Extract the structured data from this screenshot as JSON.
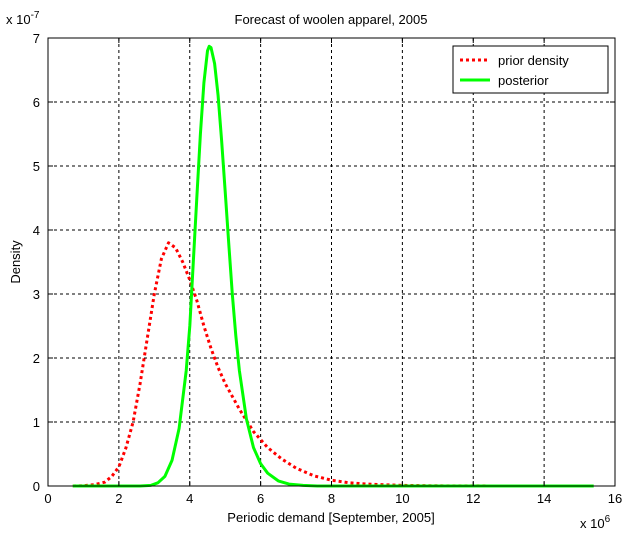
{
  "chart_data": {
    "type": "line",
    "title": "Forecast of woolen apparel, 2005",
    "xlabel": "Periodic demand [September, 2005]",
    "ylabel": "Density",
    "x_multiplier_base": "x 10",
    "x_multiplier_exp": "6",
    "y_multiplier_base": "x 10",
    "y_multiplier_exp": "-7",
    "xlim": [
      0,
      16
    ],
    "ylim": [
      0,
      7
    ],
    "x_ticks": [
      0,
      2,
      4,
      6,
      8,
      10,
      12,
      14,
      16
    ],
    "y_ticks": [
      0,
      1,
      2,
      3,
      4,
      5,
      6,
      7
    ],
    "x_tick_labels": [
      "0",
      "2",
      "4",
      "6",
      "8",
      "10",
      "12",
      "14",
      "16"
    ],
    "y_tick_labels": [
      "0",
      "1",
      "2",
      "3",
      "4",
      "5",
      "6",
      "7"
    ],
    "grid": true,
    "legend_position": "top-right",
    "series": [
      {
        "name": "prior density",
        "color": "#ff0000",
        "style": "dotted",
        "points": [
          [
            0.7,
            0
          ],
          [
            1.0,
            0.005
          ],
          [
            1.3,
            0.02
          ],
          [
            1.6,
            0.06
          ],
          [
            1.8,
            0.15
          ],
          [
            2.0,
            0.3
          ],
          [
            2.2,
            0.6
          ],
          [
            2.4,
            1.0
          ],
          [
            2.6,
            1.6
          ],
          [
            2.8,
            2.3
          ],
          [
            3.0,
            3.0
          ],
          [
            3.2,
            3.55
          ],
          [
            3.4,
            3.8
          ],
          [
            3.6,
            3.72
          ],
          [
            3.8,
            3.5
          ],
          [
            4.0,
            3.22
          ],
          [
            4.2,
            2.9
          ],
          [
            4.4,
            2.5
          ],
          [
            4.6,
            2.15
          ],
          [
            4.8,
            1.85
          ],
          [
            5.0,
            1.6
          ],
          [
            5.4,
            1.2
          ],
          [
            5.8,
            0.85
          ],
          [
            6.2,
            0.6
          ],
          [
            6.6,
            0.42
          ],
          [
            7.0,
            0.28
          ],
          [
            7.5,
            0.16
          ],
          [
            8.0,
            0.09
          ],
          [
            8.5,
            0.05
          ],
          [
            9.0,
            0.03
          ],
          [
            10.0,
            0.01
          ],
          [
            11.0,
            0.003
          ],
          [
            12.0,
            0.001
          ],
          [
            13.0,
            0
          ],
          [
            14.0,
            0
          ],
          [
            15.4,
            0
          ]
        ]
      },
      {
        "name": "posterior",
        "color": "#00ff00",
        "style": "solid",
        "points": [
          [
            0.7,
            0
          ],
          [
            2.6,
            0
          ],
          [
            2.9,
            0.01
          ],
          [
            3.1,
            0.05
          ],
          [
            3.3,
            0.15
          ],
          [
            3.5,
            0.4
          ],
          [
            3.7,
            0.9
          ],
          [
            3.9,
            1.8
          ],
          [
            4.0,
            2.5
          ],
          [
            4.1,
            3.5
          ],
          [
            4.2,
            4.5
          ],
          [
            4.3,
            5.5
          ],
          [
            4.4,
            6.3
          ],
          [
            4.5,
            6.8
          ],
          [
            4.55,
            6.87
          ],
          [
            4.6,
            6.85
          ],
          [
            4.7,
            6.6
          ],
          [
            4.8,
            6.1
          ],
          [
            4.9,
            5.4
          ],
          [
            5.0,
            4.6
          ],
          [
            5.1,
            3.8
          ],
          [
            5.2,
            3.0
          ],
          [
            5.3,
            2.35
          ],
          [
            5.4,
            1.8
          ],
          [
            5.6,
            1.05
          ],
          [
            5.8,
            0.6
          ],
          [
            6.0,
            0.35
          ],
          [
            6.2,
            0.2
          ],
          [
            6.5,
            0.08
          ],
          [
            6.8,
            0.03
          ],
          [
            7.2,
            0.01
          ],
          [
            7.6,
            0
          ],
          [
            15.4,
            0
          ]
        ]
      }
    ]
  }
}
